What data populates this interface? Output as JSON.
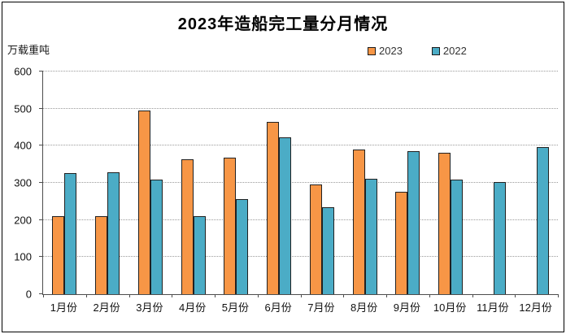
{
  "header": {
    "title": "2023年造船完工量分月情况"
  },
  "y_axis": {
    "unit_label": "万载重吨",
    "tick_labels": [
      "0",
      "100",
      "200",
      "300",
      "400",
      "500",
      "600"
    ]
  },
  "legend": {
    "items": [
      {
        "label": "2023",
        "color": "#F79646"
      },
      {
        "label": "2022",
        "color": "#4BACC6"
      }
    ]
  },
  "colors": {
    "bar_2023": "#F79646",
    "bar_2022": "#4BACC6",
    "bar_outline": "#212121",
    "axis": "#4d4d4d",
    "gridline": "#9a9a9a",
    "background": "#ffffff"
  },
  "chart_data": {
    "type": "bar",
    "title": "2023年造船完工量分月情况",
    "xlabel": "",
    "ylabel": "万载重吨",
    "categories": [
      "1月份",
      "2月份",
      "3月份",
      "4月份",
      "5月份",
      "6月份",
      "7月份",
      "8月份",
      "9月份",
      "10月份",
      "11月份",
      "12月份"
    ],
    "series": [
      {
        "name": "2023",
        "color": "#F79646",
        "values": [
          211,
          211,
          494,
          363,
          367,
          465,
          296,
          389,
          276,
          381,
          null,
          null
        ]
      },
      {
        "name": "2022",
        "color": "#4BACC6",
        "values": [
          326,
          328,
          308,
          210,
          256,
          422,
          235,
          310,
          386,
          308,
          303,
          396
        ]
      }
    ],
    "ylim": [
      0,
      600
    ],
    "ytick_interval": 100,
    "grid": "horizontal-dotted",
    "legend_position": "top-right"
  }
}
